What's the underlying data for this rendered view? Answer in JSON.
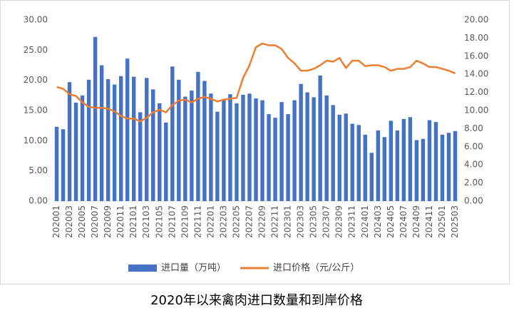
{
  "chart_data": {
    "type": "bar-line",
    "title": "2020年以来禽肉进口数量和到岸价格",
    "categories": [
      "202001",
      null,
      "202003",
      null,
      "202005",
      null,
      "202007",
      null,
      "202009",
      null,
      "202011",
      null,
      "202101",
      null,
      "202103",
      null,
      "202105",
      null,
      "202107",
      null,
      "202109",
      null,
      "202111",
      null,
      "202201",
      null,
      "202203",
      null,
      "202205",
      null,
      "202207",
      null,
      "202209",
      null,
      "202211",
      null,
      "202301",
      null,
      "202303",
      null,
      "202305",
      null,
      "202307",
      null,
      "202309",
      null,
      "202311",
      null,
      "202401",
      null,
      "202403",
      null,
      "202405",
      null,
      "202407",
      null,
      "202409",
      null,
      "202411",
      null,
      "202501",
      null,
      "202503"
    ],
    "series": [
      {
        "name": "进口量（万吨）",
        "type": "bar",
        "color": "#4472c4",
        "values": [
          12.3,
          11.9,
          19.7,
          16.3,
          17.5,
          20.1,
          27.2,
          22.5,
          20.2,
          19.3,
          20.7,
          23.6,
          20.6,
          14.7,
          20.4,
          18.5,
          16.2,
          13.0,
          22.3,
          20.1,
          17.3,
          18.3,
          21.4,
          19.9,
          17.8,
          14.8,
          16.9,
          17.7,
          16.2,
          17.6,
          17.8,
          17.0,
          16.7,
          14.4,
          13.8,
          16.4,
          14.4,
          16.7,
          19.4,
          18.0,
          17.2,
          20.8,
          17.5,
          15.9,
          14.3,
          14.5,
          12.8,
          12.6,
          11.0,
          8.0,
          11.7,
          10.6,
          13.3,
          11.7,
          13.6,
          13.9,
          10.1,
          10.3,
          13.4,
          13.1,
          11.0,
          11.3,
          11.6
        ]
      },
      {
        "name": "进口价格（元/公斤）",
        "type": "line",
        "axis": "y2",
        "color": "#ed7d31",
        "values": [
          12.6,
          12.4,
          11.8,
          11.6,
          10.9,
          10.4,
          10.3,
          10.3,
          10.2,
          9.9,
          9.4,
          9.1,
          9.1,
          8.8,
          9.2,
          9.8,
          10.1,
          9.8,
          10.6,
          11.1,
          11.2,
          10.9,
          11.3,
          11.5,
          11.3,
          11.0,
          11.2,
          11.3,
          11.4,
          13.6,
          15.0,
          17.0,
          17.4,
          17.2,
          17.2,
          16.8,
          15.8,
          15.2,
          14.4,
          14.4,
          14.6,
          15.0,
          15.5,
          15.4,
          15.8,
          14.7,
          15.5,
          15.5,
          14.9,
          15.0,
          15.0,
          14.8,
          14.4,
          14.6,
          14.6,
          14.8,
          15.5,
          15.2,
          14.8,
          14.8,
          14.6,
          14.4,
          14.1
        ]
      }
    ],
    "ylim": [
      0,
      30
    ],
    "yticks": [
      {
        "value": 0,
        "label": "0.00"
      },
      {
        "value": 5,
        "label": "5.00"
      },
      {
        "value": 10,
        "label": "10.00"
      },
      {
        "value": 15,
        "label": "15.00"
      },
      {
        "value": 20,
        "label": "20.00"
      },
      {
        "value": 25,
        "label": "25.00"
      },
      {
        "value": 30,
        "label": "30.00"
      }
    ],
    "y2lim": [
      0,
      20
    ],
    "y2ticks": [
      {
        "value": 0,
        "label": "0.00"
      },
      {
        "value": 2,
        "label": "2.00"
      },
      {
        "value": 4,
        "label": "4.00"
      },
      {
        "value": 6,
        "label": "6.00"
      },
      {
        "value": 8,
        "label": "8.00"
      },
      {
        "value": 10,
        "label": "10.00"
      },
      {
        "value": 12,
        "label": "12.00"
      },
      {
        "value": 14,
        "label": "14.00"
      },
      {
        "value": 16,
        "label": "16.00"
      },
      {
        "value": 18,
        "label": "18.00"
      },
      {
        "value": 20,
        "label": "20.00"
      }
    ],
    "legend": "bottom",
    "grid": false
  }
}
